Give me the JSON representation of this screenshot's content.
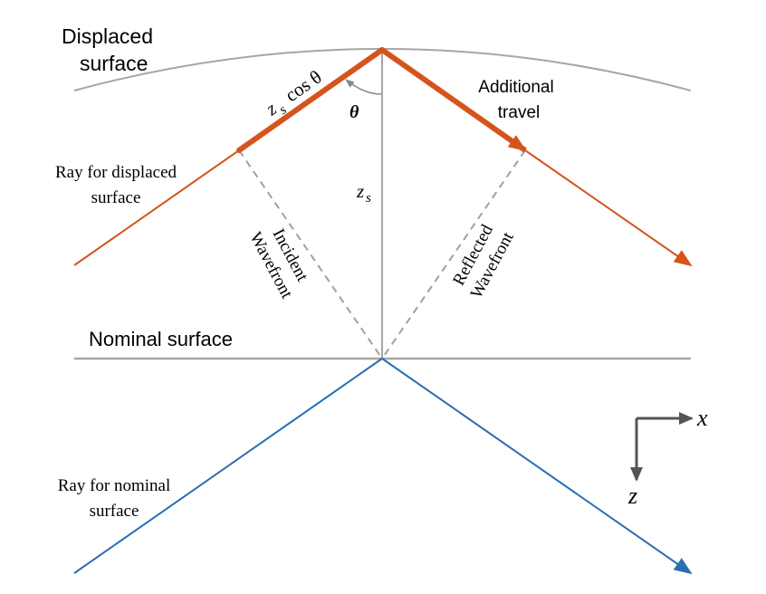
{
  "labels": {
    "displaced_surface_line1": "Displaced",
    "displaced_surface_line2": "surface",
    "zs_cos_z": "z",
    "zs_cos_s": "s",
    "zs_cos_rest": "cos θ",
    "theta": "θ",
    "additional_travel_line1": "Additional",
    "additional_travel_line2": "travel",
    "ray_displaced_line1": "Ray for displaced",
    "ray_displaced_line2": "surface",
    "zs_z": "z",
    "zs_s": "s",
    "incident_line1": "Incident",
    "incident_line2": "Wavefront",
    "reflected_line1": "Reflected",
    "reflected_line2": "Wavefront",
    "nominal_surface": "Nominal surface",
    "ray_nominal_line1": "Ray for nominal",
    "ray_nominal_line2": "surface",
    "axis_x": "x",
    "axis_z": "z"
  },
  "colors": {
    "orange_ray": "#d4541c",
    "blue_ray": "#2a6faf",
    "surface_gray": "#a6a6a6",
    "wavefront_gray": "#a0a0a0",
    "axis_gray": "#555555"
  }
}
